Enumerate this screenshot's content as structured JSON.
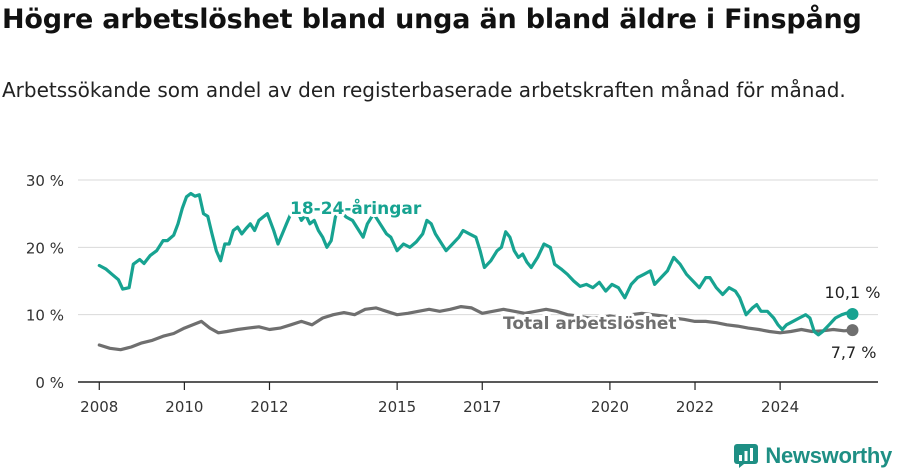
{
  "title": "Högre arbetslöshet bland unga än bland äldre i Finspång",
  "subtitle": "Arbetssökande som andel av den registerbaserade arbetskraften månad för månad.",
  "brand": {
    "name": "Newsworthy"
  },
  "chart_data": {
    "type": "line",
    "xlim": [
      2007.5,
      2026.3
    ],
    "ylim": [
      0,
      30
    ],
    "xticks": [
      {
        "value": 2008,
        "label": "2008"
      },
      {
        "value": 2010,
        "label": "2010"
      },
      {
        "value": 2012,
        "label": "2012"
      },
      {
        "value": 2015,
        "label": "2015"
      },
      {
        "value": 2017,
        "label": "2017"
      },
      {
        "value": 2020,
        "label": "2020"
      },
      {
        "value": 2022,
        "label": "2022"
      },
      {
        "value": 2024,
        "label": "2024"
      }
    ],
    "yticks": [
      {
        "value": 0,
        "label": "0 %"
      },
      {
        "value": 10,
        "label": "10 %"
      },
      {
        "value": 20,
        "label": "20 %"
      },
      {
        "value": 30,
        "label": "30 %"
      }
    ],
    "grid": true,
    "series": [
      {
        "name": "18-24-åringar",
        "color": "#17a391",
        "end_label": "10,1 %",
        "points": [
          [
            2008.0,
            17.3
          ],
          [
            2008.15,
            16.8
          ],
          [
            2008.3,
            16.0
          ],
          [
            2008.45,
            15.2
          ],
          [
            2008.55,
            13.8
          ],
          [
            2008.7,
            14.0
          ],
          [
            2008.8,
            17.5
          ],
          [
            2008.95,
            18.2
          ],
          [
            2009.05,
            17.6
          ],
          [
            2009.2,
            18.8
          ],
          [
            2009.35,
            19.5
          ],
          [
            2009.5,
            21.0
          ],
          [
            2009.6,
            21.0
          ],
          [
            2009.75,
            21.8
          ],
          [
            2009.85,
            23.5
          ],
          [
            2009.95,
            25.8
          ],
          [
            2010.05,
            27.5
          ],
          [
            2010.15,
            28.0
          ],
          [
            2010.25,
            27.6
          ],
          [
            2010.35,
            27.8
          ],
          [
            2010.45,
            25.0
          ],
          [
            2010.55,
            24.6
          ],
          [
            2010.65,
            22.0
          ],
          [
            2010.75,
            19.5
          ],
          [
            2010.85,
            18.0
          ],
          [
            2010.95,
            20.5
          ],
          [
            2011.05,
            20.5
          ],
          [
            2011.15,
            22.5
          ],
          [
            2011.25,
            23.0
          ],
          [
            2011.35,
            22.0
          ],
          [
            2011.45,
            22.8
          ],
          [
            2011.55,
            23.5
          ],
          [
            2011.65,
            22.5
          ],
          [
            2011.75,
            24.0
          ],
          [
            2011.85,
            24.5
          ],
          [
            2011.95,
            25.0
          ],
          [
            2012.1,
            22.5
          ],
          [
            2012.2,
            20.5
          ],
          [
            2012.3,
            22.0
          ],
          [
            2012.4,
            23.5
          ],
          [
            2012.5,
            25.0
          ],
          [
            2012.65,
            25.5
          ],
          [
            2012.75,
            24.0
          ],
          [
            2012.85,
            24.8
          ],
          [
            2012.95,
            23.5
          ],
          [
            2013.05,
            24.0
          ],
          [
            2013.15,
            22.5
          ],
          [
            2013.25,
            21.5
          ],
          [
            2013.35,
            20.0
          ],
          [
            2013.45,
            21.0
          ],
          [
            2013.55,
            24.5
          ],
          [
            2013.65,
            25.5
          ],
          [
            2013.8,
            24.5
          ],
          [
            2013.95,
            24.0
          ],
          [
            2014.1,
            22.5
          ],
          [
            2014.2,
            21.5
          ],
          [
            2014.3,
            23.5
          ],
          [
            2014.45,
            25.0
          ],
          [
            2014.6,
            23.5
          ],
          [
            2014.75,
            22.0
          ],
          [
            2014.85,
            21.5
          ],
          [
            2015.0,
            19.5
          ],
          [
            2015.15,
            20.5
          ],
          [
            2015.3,
            20.0
          ],
          [
            2015.45,
            20.8
          ],
          [
            2015.6,
            22.0
          ],
          [
            2015.7,
            24.0
          ],
          [
            2015.8,
            23.5
          ],
          [
            2015.9,
            22.0
          ],
          [
            2016.0,
            21.0
          ],
          [
            2016.15,
            19.5
          ],
          [
            2016.3,
            20.5
          ],
          [
            2016.45,
            21.5
          ],
          [
            2016.55,
            22.5
          ],
          [
            2016.7,
            22.0
          ],
          [
            2016.85,
            21.5
          ],
          [
            2016.95,
            19.5
          ],
          [
            2017.05,
            17.0
          ],
          [
            2017.2,
            18.0
          ],
          [
            2017.35,
            19.5
          ],
          [
            2017.45,
            20.0
          ],
          [
            2017.55,
            22.3
          ],
          [
            2017.65,
            21.5
          ],
          [
            2017.75,
            19.5
          ],
          [
            2017.85,
            18.5
          ],
          [
            2017.95,
            19.0
          ],
          [
            2018.05,
            17.8
          ],
          [
            2018.15,
            17.0
          ],
          [
            2018.3,
            18.5
          ],
          [
            2018.45,
            20.5
          ],
          [
            2018.6,
            20.0
          ],
          [
            2018.7,
            17.5
          ],
          [
            2018.85,
            16.8
          ],
          [
            2019.0,
            16.0
          ],
          [
            2019.15,
            15.0
          ],
          [
            2019.3,
            14.2
          ],
          [
            2019.45,
            14.5
          ],
          [
            2019.6,
            14.0
          ],
          [
            2019.75,
            14.8
          ],
          [
            2019.9,
            13.5
          ],
          [
            2020.05,
            14.5
          ],
          [
            2020.2,
            14.0
          ],
          [
            2020.35,
            12.5
          ],
          [
            2020.5,
            14.5
          ],
          [
            2020.65,
            15.5
          ],
          [
            2020.8,
            16.0
          ],
          [
            2020.95,
            16.5
          ],
          [
            2021.05,
            14.5
          ],
          [
            2021.2,
            15.5
          ],
          [
            2021.35,
            16.5
          ],
          [
            2021.5,
            18.5
          ],
          [
            2021.65,
            17.5
          ],
          [
            2021.8,
            16.0
          ],
          [
            2021.95,
            15.0
          ],
          [
            2022.1,
            14.0
          ],
          [
            2022.25,
            15.5
          ],
          [
            2022.35,
            15.5
          ],
          [
            2022.5,
            14.0
          ],
          [
            2022.65,
            13.0
          ],
          [
            2022.8,
            14.0
          ],
          [
            2022.95,
            13.5
          ],
          [
            2023.05,
            12.5
          ],
          [
            2023.2,
            10.0
          ],
          [
            2023.35,
            11.0
          ],
          [
            2023.45,
            11.5
          ],
          [
            2023.55,
            10.5
          ],
          [
            2023.7,
            10.5
          ],
          [
            2023.85,
            9.5
          ],
          [
            2023.95,
            8.5
          ],
          [
            2024.05,
            7.8
          ],
          [
            2024.15,
            8.5
          ],
          [
            2024.3,
            9.0
          ],
          [
            2024.45,
            9.5
          ],
          [
            2024.6,
            10.0
          ],
          [
            2024.7,
            9.5
          ],
          [
            2024.8,
            7.5
          ],
          [
            2024.9,
            7.0
          ],
          [
            2025.0,
            7.5
          ],
          [
            2025.15,
            8.5
          ],
          [
            2025.3,
            9.5
          ],
          [
            2025.45,
            10.0
          ],
          [
            2025.6,
            10.3
          ],
          [
            2025.7,
            10.1
          ]
        ]
      },
      {
        "name": "Total arbetslöshet",
        "color": "#6f6f6f",
        "end_label": "7,7 %",
        "points": [
          [
            2008.0,
            5.5
          ],
          [
            2008.25,
            5.0
          ],
          [
            2008.5,
            4.8
          ],
          [
            2008.75,
            5.2
          ],
          [
            2009.0,
            5.8
          ],
          [
            2009.25,
            6.2
          ],
          [
            2009.5,
            6.8
          ],
          [
            2009.75,
            7.2
          ],
          [
            2010.0,
            8.0
          ],
          [
            2010.2,
            8.5
          ],
          [
            2010.4,
            9.0
          ],
          [
            2010.6,
            8.0
          ],
          [
            2010.8,
            7.3
          ],
          [
            2011.0,
            7.5
          ],
          [
            2011.25,
            7.8
          ],
          [
            2011.5,
            8.0
          ],
          [
            2011.75,
            8.2
          ],
          [
            2012.0,
            7.8
          ],
          [
            2012.25,
            8.0
          ],
          [
            2012.5,
            8.5
          ],
          [
            2012.75,
            9.0
          ],
          [
            2013.0,
            8.5
          ],
          [
            2013.25,
            9.5
          ],
          [
            2013.5,
            10.0
          ],
          [
            2013.75,
            10.3
          ],
          [
            2014.0,
            10.0
          ],
          [
            2014.25,
            10.8
          ],
          [
            2014.5,
            11.0
          ],
          [
            2014.75,
            10.5
          ],
          [
            2015.0,
            10.0
          ],
          [
            2015.25,
            10.2
          ],
          [
            2015.5,
            10.5
          ],
          [
            2015.75,
            10.8
          ],
          [
            2016.0,
            10.5
          ],
          [
            2016.25,
            10.8
          ],
          [
            2016.5,
            11.2
          ],
          [
            2016.75,
            11.0
          ],
          [
            2017.0,
            10.2
          ],
          [
            2017.25,
            10.5
          ],
          [
            2017.5,
            10.8
          ],
          [
            2017.75,
            10.5
          ],
          [
            2018.0,
            10.2
          ],
          [
            2018.25,
            10.5
          ],
          [
            2018.5,
            10.8
          ],
          [
            2018.75,
            10.5
          ],
          [
            2019.0,
            10.0
          ],
          [
            2019.25,
            9.8
          ],
          [
            2019.5,
            9.5
          ],
          [
            2019.75,
            9.5
          ],
          [
            2020.0,
            9.8
          ],
          [
            2020.25,
            9.5
          ],
          [
            2020.5,
            10.0
          ],
          [
            2020.75,
            10.2
          ],
          [
            2021.0,
            10.0
          ],
          [
            2021.25,
            9.8
          ],
          [
            2021.5,
            9.5
          ],
          [
            2021.75,
            9.3
          ],
          [
            2022.0,
            9.0
          ],
          [
            2022.25,
            9.0
          ],
          [
            2022.5,
            8.8
          ],
          [
            2022.75,
            8.5
          ],
          [
            2023.0,
            8.3
          ],
          [
            2023.25,
            8.0
          ],
          [
            2023.5,
            7.8
          ],
          [
            2023.75,
            7.5
          ],
          [
            2024.0,
            7.3
          ],
          [
            2024.25,
            7.5
          ],
          [
            2024.5,
            7.8
          ],
          [
            2024.75,
            7.5
          ],
          [
            2025.0,
            7.6
          ],
          [
            2025.25,
            7.8
          ],
          [
            2025.5,
            7.6
          ],
          [
            2025.7,
            7.7
          ]
        ]
      }
    ]
  }
}
